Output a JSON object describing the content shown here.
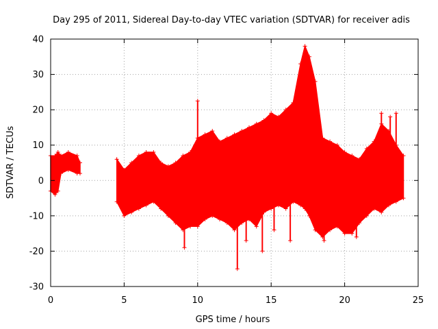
{
  "chart_data": {
    "type": "scatter",
    "title": "Day 295 of 2011, Sidereal Day-to-day VTEC variation (SDTVAR) for receiver adis",
    "xlabel": "GPS time / hours",
    "ylabel": "SDTVAR / TECUs",
    "xlim": [
      0,
      25
    ],
    "ylim": [
      -30,
      40
    ],
    "xticks": [
      "0",
      "5",
      "10",
      "15",
      "20",
      "25"
    ],
    "yticks": [
      "-30",
      "-20",
      "-10",
      "0",
      "10",
      "20",
      "30",
      "40"
    ],
    "grid": true,
    "marker": "+",
    "color": "#ff0000",
    "series": [
      {
        "envelope": [
          {
            "x": 0.0,
            "upper": 7,
            "lower": -3
          },
          {
            "x": 0.3,
            "upper": 7,
            "lower": -4
          },
          {
            "x": 0.5,
            "upper": 8,
            "lower": -3
          },
          {
            "x": 0.7,
            "upper": 7,
            "lower": 2
          },
          {
            "x": 1.2,
            "upper": 8,
            "lower": 3
          },
          {
            "x": 1.8,
            "upper": 7,
            "lower": 2
          },
          {
            "x": 2.0,
            "upper": 5,
            "lower": 2
          }
        ]
      },
      {
        "envelope": [
          {
            "x": 4.5,
            "upper": 6,
            "lower": -6
          },
          {
            "x": 5.0,
            "upper": 3,
            "lower": -10
          },
          {
            "x": 5.5,
            "upper": 5,
            "lower": -9
          },
          {
            "x": 6.0,
            "upper": 7,
            "lower": -8
          },
          {
            "x": 6.5,
            "upper": 8,
            "lower": -7
          },
          {
            "x": 7.0,
            "upper": 8,
            "lower": -6
          },
          {
            "x": 7.5,
            "upper": 5,
            "lower": -8
          },
          {
            "x": 8.0,
            "upper": 4,
            "lower": -10
          },
          {
            "x": 8.5,
            "upper": 5,
            "lower": -12
          },
          {
            "x": 9.0,
            "upper": 7,
            "lower": -14
          },
          {
            "x": 9.5,
            "upper": 8,
            "lower": -13
          },
          {
            "x": 10.0,
            "upper": 12,
            "lower": -13
          },
          {
            "x": 10.5,
            "upper": 13,
            "lower": -11
          },
          {
            "x": 11.0,
            "upper": 14,
            "lower": -10
          },
          {
            "x": 11.5,
            "upper": 11,
            "lower": -11
          },
          {
            "x": 12.0,
            "upper": 12,
            "lower": -12
          },
          {
            "x": 12.5,
            "upper": 13,
            "lower": -14
          },
          {
            "x": 13.0,
            "upper": 14,
            "lower": -12
          },
          {
            "x": 13.5,
            "upper": 15,
            "lower": -11
          },
          {
            "x": 14.0,
            "upper": 16,
            "lower": -13
          },
          {
            "x": 14.5,
            "upper": 17,
            "lower": -9
          },
          {
            "x": 15.0,
            "upper": 19,
            "lower": -8
          },
          {
            "x": 15.5,
            "upper": 18,
            "lower": -7
          },
          {
            "x": 16.0,
            "upper": 20,
            "lower": -8
          },
          {
            "x": 16.5,
            "upper": 22,
            "lower": -6
          },
          {
            "x": 17.0,
            "upper": 33,
            "lower": -7
          },
          {
            "x": 17.3,
            "upper": 38,
            "lower": -8
          },
          {
            "x": 17.6,
            "upper": 35,
            "lower": -10
          },
          {
            "x": 18.0,
            "upper": 28,
            "lower": -14
          },
          {
            "x": 18.5,
            "upper": 12,
            "lower": -16
          },
          {
            "x": 19.0,
            "upper": 11,
            "lower": -14
          },
          {
            "x": 19.5,
            "upper": 10,
            "lower": -13
          },
          {
            "x": 20.0,
            "upper": 8,
            "lower": -15
          },
          {
            "x": 20.5,
            "upper": 7,
            "lower": -15
          },
          {
            "x": 21.0,
            "upper": 6,
            "lower": -12
          },
          {
            "x": 21.5,
            "upper": 9,
            "lower": -10
          },
          {
            "x": 22.0,
            "upper": 11,
            "lower": -8
          },
          {
            "x": 22.5,
            "upper": 16,
            "lower": -9
          },
          {
            "x": 23.0,
            "upper": 14,
            "lower": -7
          },
          {
            "x": 23.5,
            "upper": 10,
            "lower": -6
          },
          {
            "x": 24.0,
            "upper": 7,
            "lower": -5
          }
        ]
      }
    ],
    "spikes": [
      {
        "x": 9.1,
        "y": -19
      },
      {
        "x": 10.0,
        "y": 22.5
      },
      {
        "x": 12.7,
        "y": -25
      },
      {
        "x": 13.3,
        "y": -17
      },
      {
        "x": 14.4,
        "y": -20
      },
      {
        "x": 15.2,
        "y": -14
      },
      {
        "x": 16.3,
        "y": -17
      },
      {
        "x": 18.6,
        "y": -17
      },
      {
        "x": 20.8,
        "y": -16
      },
      {
        "x": 22.5,
        "y": 19
      },
      {
        "x": 23.1,
        "y": 18
      },
      {
        "x": 23.5,
        "y": 19
      }
    ]
  }
}
